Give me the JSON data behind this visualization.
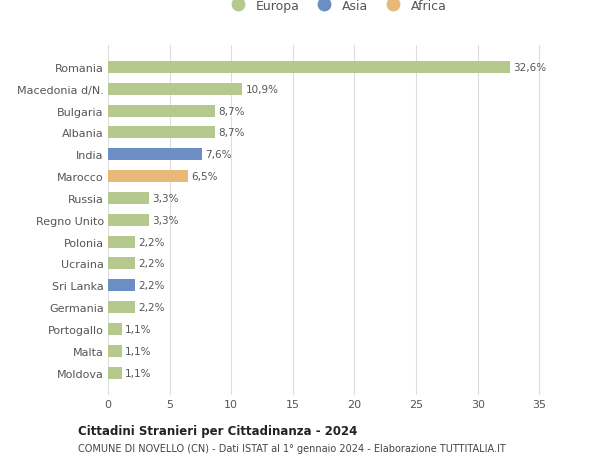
{
  "countries": [
    "Romania",
    "Macedonia d/N.",
    "Bulgaria",
    "Albania",
    "India",
    "Marocco",
    "Russia",
    "Regno Unito",
    "Polonia",
    "Ucraina",
    "Sri Lanka",
    "Germania",
    "Portogallo",
    "Malta",
    "Moldova"
  ],
  "values": [
    32.6,
    10.9,
    8.7,
    8.7,
    7.6,
    6.5,
    3.3,
    3.3,
    2.2,
    2.2,
    2.2,
    2.2,
    1.1,
    1.1,
    1.1
  ],
  "labels": [
    "32,6%",
    "10,9%",
    "8,7%",
    "8,7%",
    "7,6%",
    "6,5%",
    "3,3%",
    "3,3%",
    "2,2%",
    "2,2%",
    "2,2%",
    "2,2%",
    "1,1%",
    "1,1%",
    "1,1%"
  ],
  "continents": [
    "Europa",
    "Europa",
    "Europa",
    "Europa",
    "Asia",
    "Africa",
    "Europa",
    "Europa",
    "Europa",
    "Europa",
    "Asia",
    "Europa",
    "Europa",
    "Europa",
    "Europa"
  ],
  "colors": {
    "Europa": "#b5c98e",
    "Asia": "#6b8fc4",
    "Africa": "#e8b87a"
  },
  "title1": "Cittadini Stranieri per Cittadinanza - 2024",
  "title2": "COMUNE DI NOVELLO (CN) - Dati ISTAT al 1° gennaio 2024 - Elaborazione TUTTITALIA.IT",
  "xlim": [
    0,
    37
  ],
  "xticks": [
    0,
    5,
    10,
    15,
    20,
    25,
    30,
    35
  ],
  "background_color": "#ffffff",
  "grid_color": "#dddddd",
  "bar_height": 0.55
}
